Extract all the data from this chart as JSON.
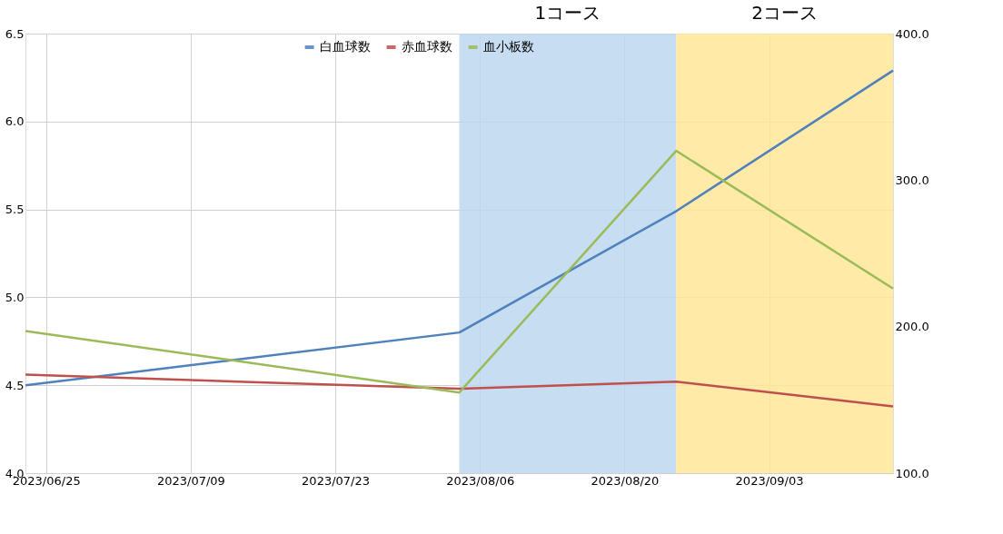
{
  "chart_data": {
    "type": "line",
    "x": [
      "2023-06-23",
      "2023-08-04",
      "2023-08-25",
      "2023-09-15"
    ],
    "series": [
      {
        "name": "白血球数",
        "color": "#4f81bd",
        "values": [
          4.5,
          4.8,
          5.49,
          6.29
        ]
      },
      {
        "name": "赤血球数",
        "color": "#c0504d",
        "values": [
          4.56,
          4.48,
          4.52,
          4.38
        ]
      },
      {
        "name": "血小板数",
        "color": "#9bbb59",
        "axis": "y2",
        "values": [
          197,
          155,
          320,
          226
        ]
      }
    ],
    "xlim": [
      "2023-06-23",
      "2023-09-15"
    ],
    "xticks": [
      {
        "value": "2023-06-25",
        "label": "2023/06/25"
      },
      {
        "value": "2023-07-09",
        "label": "2023/07/09"
      },
      {
        "value": "2023-07-23",
        "label": "2023/07/23"
      },
      {
        "value": "2023-08-06",
        "label": "2023/08/06"
      },
      {
        "value": "2023-08-20",
        "label": "2023/08/20"
      },
      {
        "value": "2023-09-03",
        "label": "2023/09/03"
      }
    ],
    "ylim": [
      4.0,
      6.5
    ],
    "yticks": [
      {
        "value": 4.0,
        "label": "4.0"
      },
      {
        "value": 4.5,
        "label": "4.5"
      },
      {
        "value": 5.0,
        "label": "5.0"
      },
      {
        "value": 5.5,
        "label": "5.5"
      },
      {
        "value": 6.0,
        "label": "6.0"
      },
      {
        "value": 6.5,
        "label": "6.5"
      }
    ],
    "y2lim": [
      100,
      400
    ],
    "y2ticks": [
      {
        "value": 100,
        "label": "100.0"
      },
      {
        "value": 200,
        "label": "200.0"
      },
      {
        "value": 300,
        "label": "300.0"
      },
      {
        "value": 400,
        "label": "400.0"
      }
    ],
    "bands": [
      {
        "axis": "x",
        "from": "2023-08-04",
        "to": "2023-08-25",
        "label": "1コース",
        "color": "#bdd7ee"
      },
      {
        "axis": "x",
        "from": "2023-08-25",
        "to": "2023-09-15",
        "label": "2コース",
        "color": "#ffe699"
      }
    ],
    "grid": true,
    "legend": "top",
    "marker": "none",
    "line_style": "solid"
  }
}
